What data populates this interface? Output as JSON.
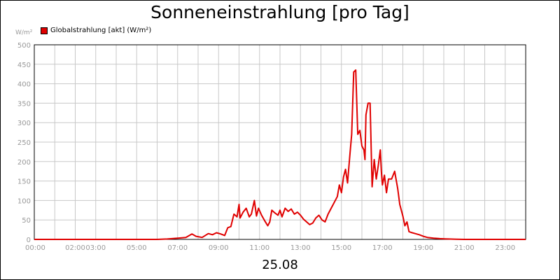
{
  "title": "Sonneneinstrahlung [pro Tag]",
  "date_label": "25.08",
  "chart_data": {
    "type": "line",
    "ylabel": "W/m²",
    "ylim": [
      0,
      500
    ],
    "yticks": [
      0,
      50,
      100,
      150,
      200,
      250,
      300,
      350,
      400,
      450,
      500
    ],
    "xlim": [
      0,
      24
    ],
    "xticks": [
      {
        "h": 0,
        "label": "00:00"
      },
      {
        "h": 2,
        "label": "02:00"
      },
      {
        "h": 3,
        "label": "03:00"
      },
      {
        "h": 5,
        "label": "05:00"
      },
      {
        "h": 7,
        "label": "07:00"
      },
      {
        "h": 9,
        "label": "09:00"
      },
      {
        "h": 11,
        "label": "11:00"
      },
      {
        "h": 13,
        "label": "13:00"
      },
      {
        "h": 15,
        "label": "15:00"
      },
      {
        "h": 17,
        "label": "17:00"
      },
      {
        "h": 19,
        "label": "19:00"
      },
      {
        "h": 21,
        "label": "21:00"
      },
      {
        "h": 23,
        "label": "23:00"
      }
    ],
    "grid": true,
    "legend": "top-left",
    "series": [
      {
        "name": "Globalstrahlung [akt] (W/m²)",
        "color": "#e00000",
        "x": [
          0,
          6,
          6.5,
          7,
          7.4,
          7.7,
          7.9,
          8.2,
          8.5,
          8.7,
          8.9,
          9.1,
          9.3,
          9.45,
          9.6,
          9.75,
          9.9,
          10.0,
          10.05,
          10.2,
          10.35,
          10.5,
          10.6,
          10.75,
          10.85,
          10.95,
          11.1,
          11.25,
          11.4,
          11.5,
          11.6,
          11.75,
          11.9,
          12.0,
          12.1,
          12.25,
          12.4,
          12.55,
          12.7,
          12.85,
          13.0,
          13.15,
          13.3,
          13.45,
          13.6,
          13.75,
          13.9,
          14.05,
          14.2,
          14.35,
          14.5,
          14.65,
          14.8,
          14.9,
          15.0,
          15.1,
          15.2,
          15.3,
          15.4,
          15.5,
          15.6,
          15.7,
          15.8,
          15.9,
          16.0,
          16.1,
          16.15,
          16.2,
          16.3,
          16.4,
          16.5,
          16.6,
          16.7,
          16.8,
          16.9,
          16.95,
          17.0,
          17.1,
          17.2,
          17.3,
          17.45,
          17.6,
          17.75,
          17.85,
          18.0,
          18.1,
          18.2,
          18.3,
          18.4,
          18.6,
          18.8,
          19.0,
          19.2,
          19.5,
          19.8,
          20.2,
          20.6,
          21,
          22,
          24
        ],
        "values": [
          0,
          0,
          1,
          3,
          5,
          14,
          8,
          5,
          15,
          12,
          17,
          14,
          10,
          30,
          33,
          65,
          58,
          90,
          55,
          70,
          80,
          58,
          65,
          100,
          60,
          80,
          62,
          48,
          35,
          45,
          75,
          68,
          62,
          75,
          58,
          80,
          72,
          78,
          65,
          70,
          62,
          52,
          45,
          38,
          42,
          55,
          62,
          50,
          45,
          65,
          80,
          95,
          110,
          140,
          120,
          160,
          180,
          145,
          210,
          270,
          430,
          435,
          270,
          280,
          240,
          230,
          205,
          320,
          350,
          350,
          135,
          205,
          155,
          190,
          230,
          175,
          140,
          165,
          120,
          155,
          155,
          175,
          130,
          90,
          60,
          35,
          45,
          20,
          18,
          15,
          12,
          8,
          5,
          3,
          2,
          1,
          0.5,
          0,
          0,
          0
        ]
      }
    ]
  }
}
